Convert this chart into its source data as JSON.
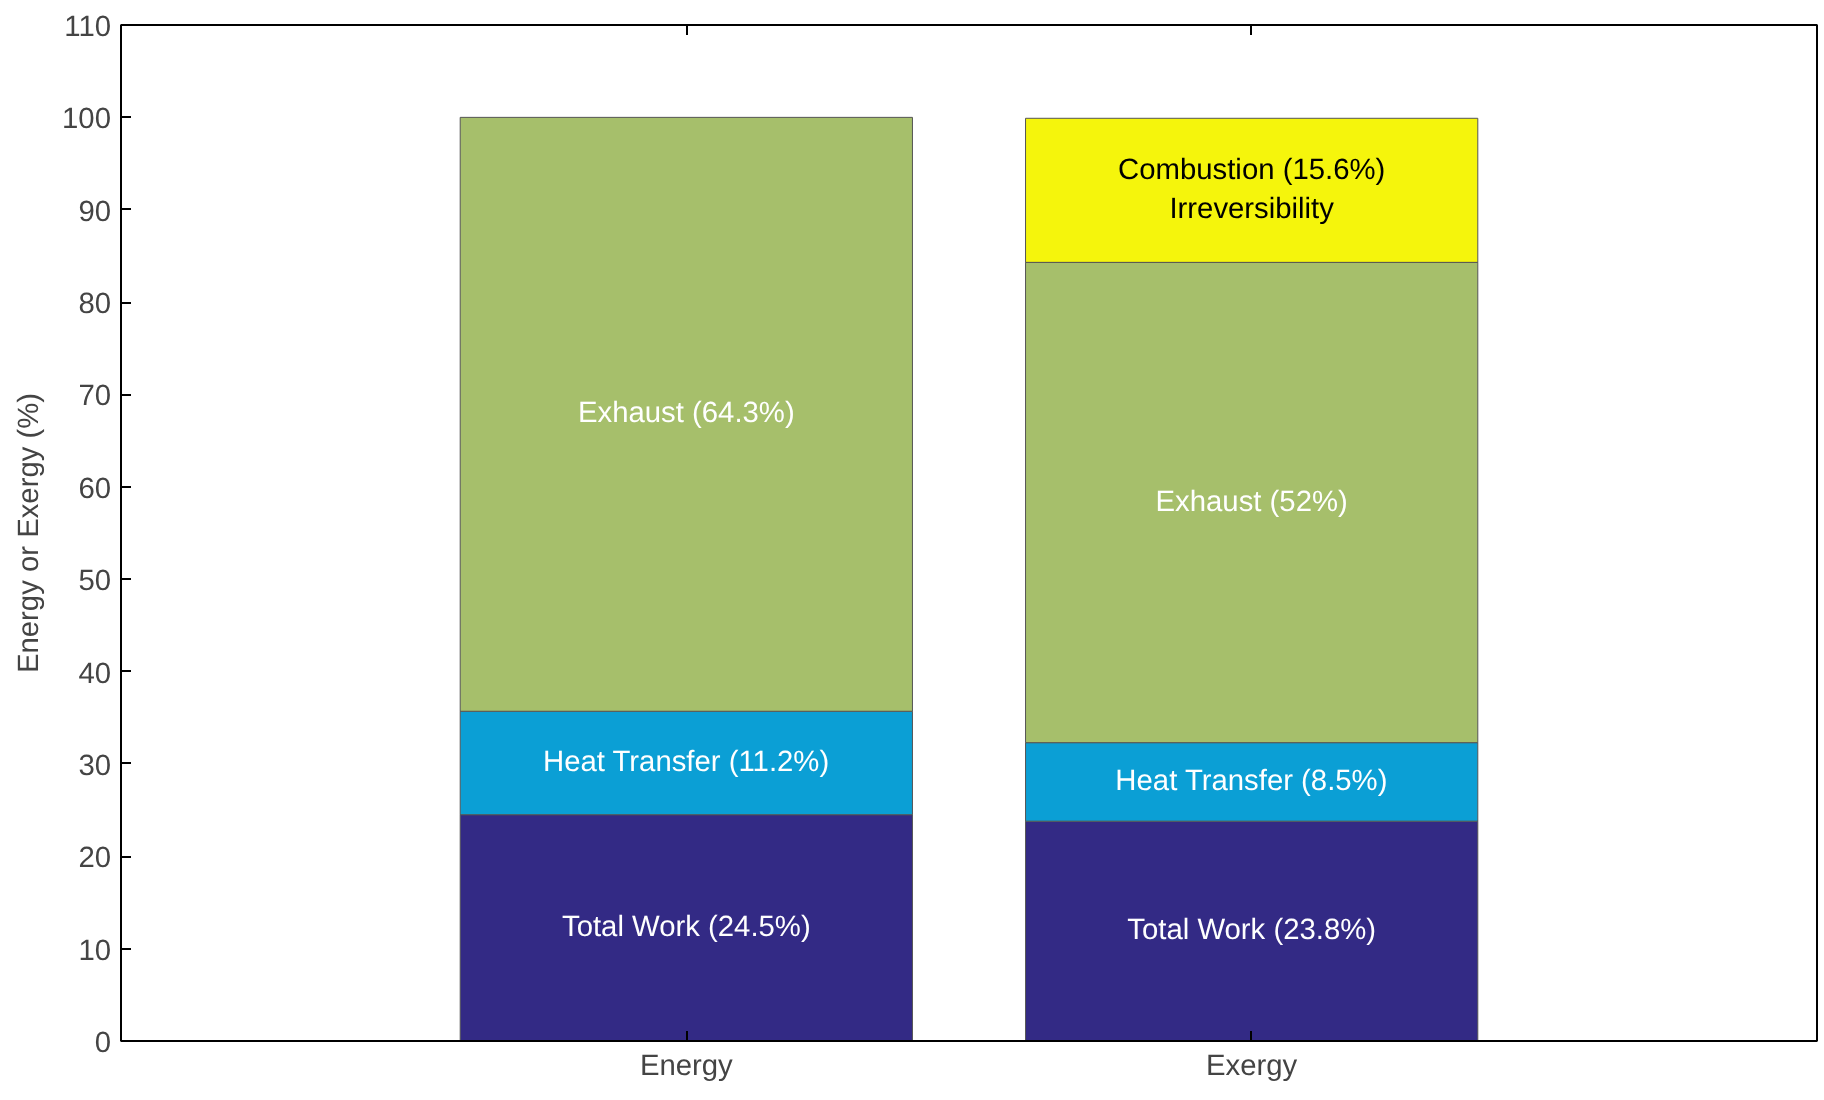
{
  "chart_data": {
    "type": "bar",
    "stacked": true,
    "ylabel": "Energy or Exergy (%)",
    "categories": [
      "Energy",
      "Exergy"
    ],
    "series": [
      {
        "color": "#332a85",
        "values": [
          24.5,
          23.8
        ],
        "value_labels": [
          "Total Work (24.5%)",
          "Total Work (23.8%)"
        ]
      },
      {
        "color": "#0b9fd5",
        "values": [
          11.2,
          8.5
        ],
        "value_labels": [
          "Heat Transfer (11.2%)",
          "Heat Transfer (8.5%)"
        ]
      },
      {
        "color": "#a6bf6b",
        "values": [
          64.3,
          52
        ],
        "value_labels": [
          "Exhaust (64.3%)",
          "Exhaust (52%)"
        ]
      },
      {
        "color": "#f5f50c",
        "values": [
          null,
          15.6
        ],
        "value_labels": [
          null,
          "Combustion (15.6%)\nIrreversibility"
        ]
      }
    ],
    "ylim": [
      0,
      110
    ],
    "yticks": [
      0,
      10,
      20,
      30,
      40,
      50,
      60,
      70,
      80,
      90,
      100,
      110
    ],
    "grid": false
  }
}
